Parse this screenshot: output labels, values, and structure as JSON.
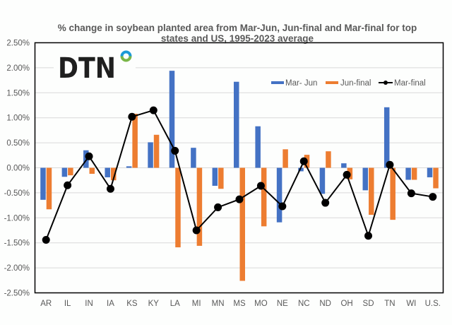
{
  "logo": {
    "text": "DTN",
    "colors": {
      "text": "#1f1f1f",
      "ring_top": "#1b9ad6",
      "ring_bottom": "#7ab648"
    }
  },
  "chart_data": {
    "type": "bar",
    "title_lines": [
      "% change in soybean planted area from Mar-Jun, Jun-final and Mar-final for top",
      "states and US, 1995-2023 average"
    ],
    "xlabel": "",
    "ylabel": "",
    "ylim": [
      -2.5,
      2.5
    ],
    "yticks": [
      2.5,
      2.0,
      1.5,
      1.0,
      0.5,
      0.0,
      -0.5,
      -1.0,
      -1.5,
      -2.0,
      -2.5
    ],
    "ytick_labels": [
      "2.50%",
      "2.00%",
      "1.50%",
      "1.00%",
      "0.50%",
      "0.00%",
      "-0.50%",
      "-1.00%",
      "-1.50%",
      "-2.00%",
      "-2.50%"
    ],
    "grid": true,
    "legend_position": "top-right",
    "categories": [
      "AR",
      "IL",
      "IN",
      "IA",
      "KS",
      "KY",
      "LA",
      "MI",
      "MN",
      "MS",
      "MO",
      "NE",
      "NC",
      "ND",
      "OH",
      "SD",
      "TN",
      "WI",
      "U.S."
    ],
    "series": [
      {
        "name": "Mar- Jun",
        "kind": "bar",
        "color": "#4472c4",
        "values": [
          -0.64,
          -0.18,
          0.35,
          -0.19,
          0.03,
          0.51,
          1.94,
          0.4,
          -0.36,
          1.72,
          0.83,
          -1.09,
          -0.07,
          -0.52,
          0.09,
          -0.45,
          1.21,
          -0.24,
          -0.19
        ]
      },
      {
        "name": "Jun-final",
        "kind": "bar",
        "color": "#ed7d31",
        "values": [
          -0.83,
          -0.15,
          -0.12,
          -0.25,
          1.08,
          0.66,
          -1.59,
          -1.56,
          -0.42,
          -2.26,
          -1.17,
          0.37,
          0.26,
          0.33,
          -0.23,
          -0.94,
          -1.04,
          -0.24,
          -0.41
        ]
      },
      {
        "name": "Mar-final",
        "kind": "line",
        "color": "#000000",
        "values": [
          -1.44,
          -0.35,
          0.23,
          -0.42,
          1.02,
          1.15,
          0.34,
          -1.25,
          -0.79,
          -0.63,
          -0.36,
          -0.77,
          0.13,
          -0.7,
          -0.14,
          -1.36,
          0.06,
          -0.51,
          -0.58
        ]
      }
    ]
  }
}
